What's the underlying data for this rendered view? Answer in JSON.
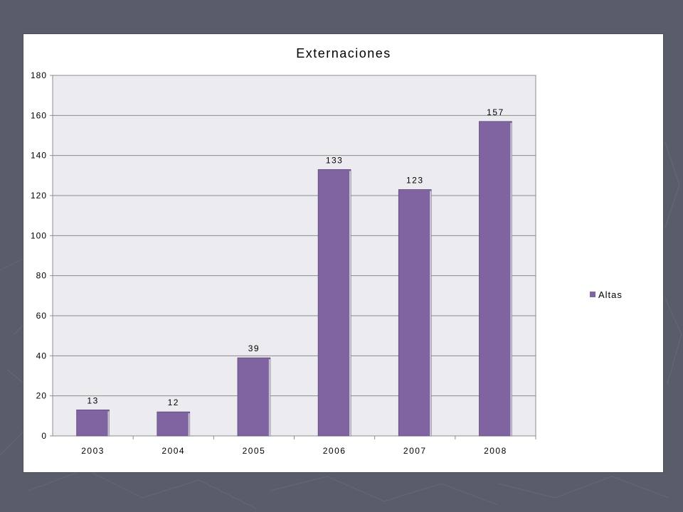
{
  "chart_data": {
    "type": "bar",
    "title": "Externaciones",
    "categories": [
      "2003",
      "2004",
      "2005",
      "2006",
      "2007",
      "2008"
    ],
    "series": [
      {
        "name": "Altas",
        "values": [
          13,
          12,
          39,
          133,
          123,
          157
        ]
      }
    ],
    "ylim": [
      0,
      180
    ],
    "y_ticks": [
      0,
      20,
      40,
      60,
      80,
      100,
      120,
      140,
      160,
      180
    ],
    "grid": true,
    "legend_position": "right",
    "colors": {
      "bar": "#8064a2",
      "bar_edge": "#5f4a7d",
      "plot_bg": "#ebebf0",
      "grid": "#8c8c8c",
      "slide_bg": "#595c69"
    }
  }
}
